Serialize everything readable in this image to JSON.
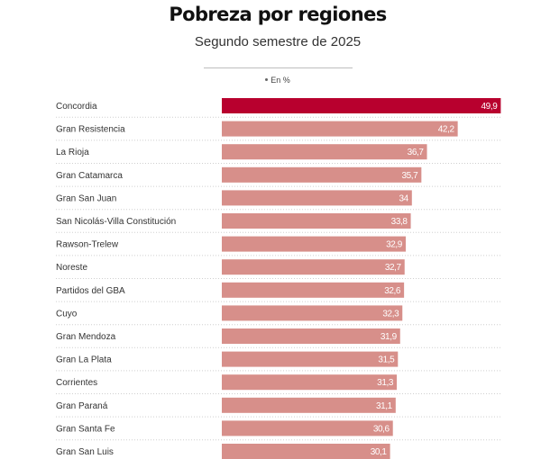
{
  "chart_data": {
    "type": "bar",
    "orientation": "horizontal",
    "title": "Pobreza por regiones",
    "subtitle": "Segundo semestre de 2025",
    "unit_note": "En %",
    "xlabel": "",
    "ylabel": "",
    "xlim": [
      0,
      50
    ],
    "grid": false,
    "legend": "none",
    "highlight_color": "#b8002e",
    "bar_color": "#d78f8a",
    "highlight_index": 0,
    "categories": [
      "Concordia",
      "Gran Resistencia",
      "La Rioja",
      "Gran Catamarca",
      "Gran San Juan",
      "San Nicolás-Villa Constitución",
      "Rawson-Trelew",
      "Noreste",
      "Partidos del GBA",
      "Cuyo",
      "Gran Mendoza",
      "Gran La Plata",
      "Corrientes",
      "Gran Paraná",
      "Gran Santa Fe",
      "Gran San Luis"
    ],
    "values": [
      49.9,
      42.2,
      36.7,
      35.7,
      34,
      33.8,
      32.9,
      32.7,
      32.6,
      32.3,
      31.9,
      31.5,
      31.3,
      31.1,
      30.6,
      30.1
    ],
    "value_labels": [
      "49,9",
      "42,2",
      "36,7",
      "35,7",
      "34",
      "33,8",
      "32,9",
      "32,7",
      "32,6",
      "32,3",
      "31,9",
      "31,5",
      "31,3",
      "31,1",
      "30,6",
      "30,1"
    ]
  }
}
